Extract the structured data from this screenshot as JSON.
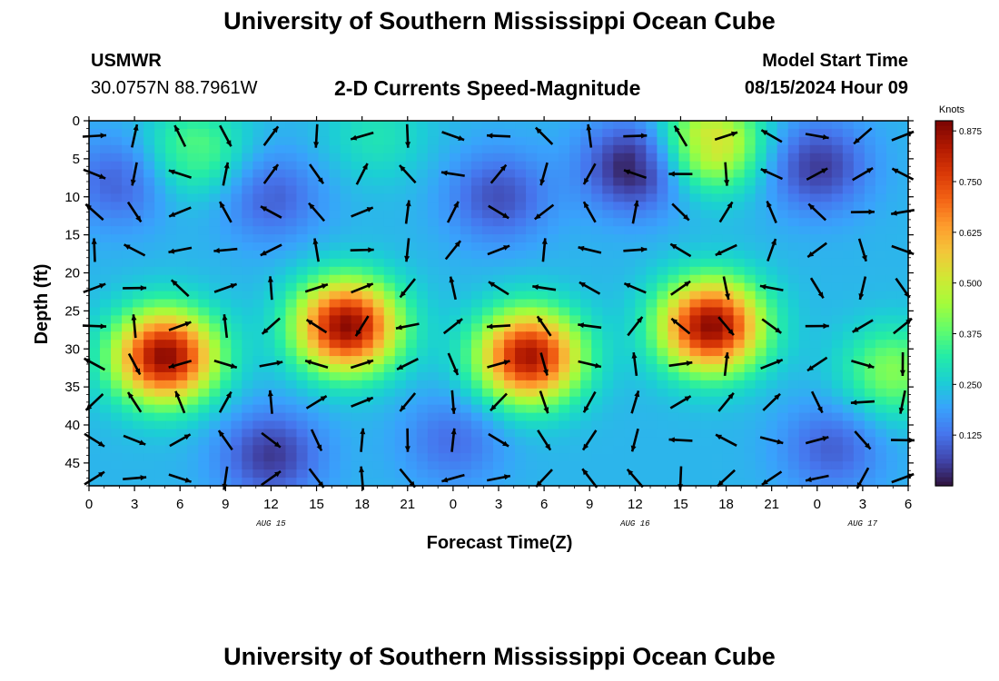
{
  "header": {
    "title": "University of Southern Mississippi Ocean Cube",
    "station_name": "USMWR",
    "station_coords": "30.0757N  88.7961W",
    "subtitle": "2-D Currents Speed-Magnitude",
    "model_start_label": "Model Start Time",
    "model_start_value": "08/15/2024 Hour 09"
  },
  "footer": {
    "title": "University of Southern Mississippi Ocean Cube"
  },
  "chart_data": {
    "type": "heatmap",
    "xlabel": "Forecast Time(Z)",
    "ylabel": "Depth (ft)",
    "x_tick_labels": [
      "0",
      "3",
      "6",
      "9",
      "12",
      "15",
      "18",
      "21",
      "0",
      "3",
      "6",
      "9",
      "12",
      "15",
      "18",
      "21",
      "0",
      "3",
      "6"
    ],
    "x_range_hours": [
      0,
      54
    ],
    "date_labels": [
      {
        "hour": 12,
        "text": "AUG 15"
      },
      {
        "hour": 36,
        "text": "AUG 16"
      },
      {
        "hour": 51,
        "text": "AUG 17"
      }
    ],
    "y_tick_labels": [
      "0",
      "5",
      "10",
      "15",
      "20",
      "25",
      "30",
      "35",
      "40",
      "45"
    ],
    "y_range_ft": [
      0,
      48
    ],
    "y_reversed": true,
    "colorbar": {
      "unit": "Knots",
      "range": [
        0.0,
        0.9
      ],
      "tick_values": [
        0.125,
        0.25,
        0.375,
        0.5,
        0.625,
        0.75,
        0.875
      ],
      "tick_labels": [
        "0.125",
        "0.250",
        "0.375",
        "0.500",
        "0.625",
        "0.750",
        "0.875"
      ],
      "colors": [
        "#30123b",
        "#4145ab",
        "#4675ed",
        "#39a2fc",
        "#1bcfd4",
        "#24eca6",
        "#61fc6c",
        "#a4fc3b",
        "#d1e834",
        "#f3c63a",
        "#fe9b2d",
        "#f36315",
        "#d93807",
        "#b11901",
        "#7a0403"
      ]
    },
    "speed_blobs": [
      {
        "hour": 5,
        "depth": 31,
        "speed": 0.88
      },
      {
        "hour": 17,
        "depth": 27,
        "speed": 0.88
      },
      {
        "hour": 29,
        "depth": 31,
        "speed": 0.85
      },
      {
        "hour": 41,
        "depth": 27,
        "speed": 0.88
      },
      {
        "hour": 7,
        "depth": 4,
        "speed": 0.38
      },
      {
        "hour": 19,
        "depth": 2,
        "speed": 0.3
      },
      {
        "hour": 41,
        "depth": 3,
        "speed": 0.55
      },
      {
        "hour": 53,
        "depth": 33,
        "speed": 0.42
      },
      {
        "hour": 36,
        "depth": 6,
        "speed": 0.0
      },
      {
        "hour": 48,
        "depth": 6,
        "speed": 0.05
      },
      {
        "hour": 12,
        "depth": 44,
        "speed": 0.05
      },
      {
        "hour": 24,
        "depth": 42,
        "speed": 0.12
      },
      {
        "hour": 49,
        "depth": 43,
        "speed": 0.1
      },
      {
        "hour": 27,
        "depth": 10,
        "speed": 0.08
      },
      {
        "hour": 2,
        "depth": 8,
        "speed": 0.1
      },
      {
        "hour": 12,
        "depth": 10,
        "speed": 0.1
      }
    ],
    "vectors": {
      "hours": [
        0,
        3,
        6,
        9,
        12,
        15,
        18,
        21,
        24,
        27,
        30,
        33,
        36,
        39,
        42,
        45,
        48,
        51,
        54
      ],
      "depths": [
        2,
        7,
        12,
        17,
        22,
        27,
        32,
        37,
        42,
        47
      ],
      "angle_seed": 7
    }
  }
}
